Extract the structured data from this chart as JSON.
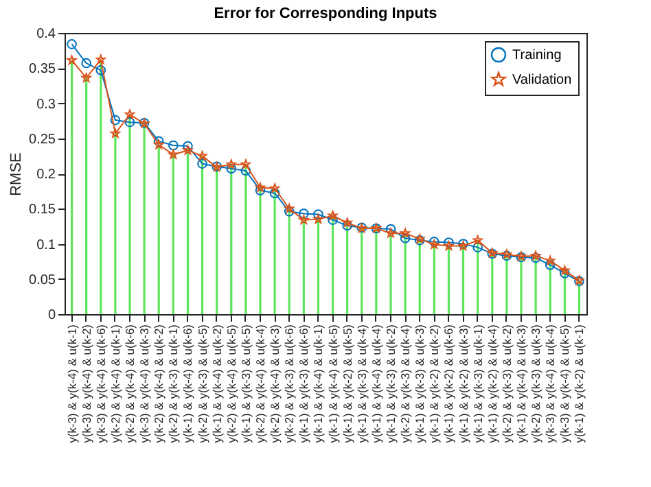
{
  "chart_data": {
    "type": "line",
    "title": "Error for Corresponding Inputs",
    "ylabel": "RMSE",
    "categories": [
      "y(k-3) & y(k-4) & u(k-1)",
      "y(k-3) & y(k-4) & u(k-2)",
      "y(k-3) & y(k-4) & u(k-6)",
      "y(k-2) & y(k-4) & u(k-1)",
      "y(k-2) & y(k-4) & u(k-6)",
      "y(k-3) & y(k-4) & u(k-3)",
      "y(k-2) & y(k-4) & u(k-2)",
      "y(k-2) & y(k-3) & u(k-1)",
      "y(k-1) & y(k-4) & u(k-6)",
      "y(k-2) & y(k-3) & u(k-5)",
      "y(k-1) & y(k-4) & u(k-2)",
      "y(k-2) & y(k-4) & u(k-5)",
      "y(k-1) & y(k-3) & u(k-5)",
      "y(k-2) & y(k-4) & u(k-4)",
      "y(k-2) & y(k-4) & u(k-3)",
      "y(k-2) & y(k-3) & u(k-6)",
      "y(k-1) & y(k-3) & u(k-6)",
      "y(k-1) & y(k-4) & u(k-1)",
      "y(k-1) & y(k-4) & u(k-5)",
      "y(k-1) & y(k-2) & u(k-5)",
      "y(k-1) & y(k-3) & u(k-4)",
      "y(k-1) & y(k-4) & u(k-4)",
      "y(k-1) & y(k-3) & u(k-2)",
      "y(k-2) & y(k-3) & u(k-4)",
      "y(k-1) & y(k-3) & u(k-3)",
      "y(k-1) & y(k-2) & u(k-2)",
      "y(k-1) & y(k-2) & u(k-6)",
      "y(k-1) & y(k-2) & u(k-3)",
      "y(k-1) & y(k-3) & u(k-1)",
      "y(k-1) & y(k-2) & u(k-4)",
      "y(k-2) & y(k-3) & u(k-2)",
      "y(k-1) & y(k-4) & u(k-3)",
      "y(k-2) & y(k-3) & u(k-3)",
      "y(k-3) & y(k-4) & u(k-4)",
      "y(k-3) & y(k-4) & u(k-5)",
      "y(k-1) & y(k-2) & u(k-1)"
    ],
    "series": [
      {
        "type": "bar",
        "color": "#5ce65c",
        "values": [
          0.361,
          0.336,
          0.362,
          0.257,
          0.284,
          0.271,
          0.241,
          0.227,
          0.233,
          0.225,
          0.209,
          0.213,
          0.213,
          0.18,
          0.179,
          0.15,
          0.134,
          0.135,
          0.14,
          0.13,
          0.122,
          0.122,
          0.115,
          0.115,
          0.107,
          0.099,
          0.097,
          0.097,
          0.105,
          0.087,
          0.085,
          0.082,
          0.083,
          0.076,
          0.062,
          0.048
        ]
      },
      {
        "name": "Training",
        "color": "#0072bd",
        "marker": "circle",
        "values": [
          0.384,
          0.357,
          0.347,
          0.276,
          0.273,
          0.272,
          0.246,
          0.24,
          0.239,
          0.214,
          0.21,
          0.207,
          0.204,
          0.176,
          0.172,
          0.146,
          0.143,
          0.142,
          0.134,
          0.126,
          0.123,
          0.122,
          0.121,
          0.108,
          0.105,
          0.103,
          0.102,
          0.1,
          0.095,
          0.086,
          0.083,
          0.081,
          0.08,
          0.07,
          0.058,
          0.047
        ]
      },
      {
        "name": "Validation",
        "color": "#d95319",
        "marker": "star",
        "values": [
          0.361,
          0.336,
          0.362,
          0.257,
          0.284,
          0.271,
          0.241,
          0.227,
          0.233,
          0.225,
          0.209,
          0.213,
          0.213,
          0.18,
          0.179,
          0.15,
          0.134,
          0.135,
          0.14,
          0.13,
          0.122,
          0.122,
          0.115,
          0.115,
          0.107,
          0.099,
          0.097,
          0.097,
          0.105,
          0.087,
          0.085,
          0.082,
          0.083,
          0.076,
          0.062,
          0.048
        ]
      }
    ],
    "ylim": [
      0,
      0.4
    ],
    "yticks": [
      0,
      0.05,
      0.1,
      0.15,
      0.2,
      0.25,
      0.3,
      0.35,
      0.4
    ],
    "legend": "top right",
    "line_style": "solid"
  }
}
